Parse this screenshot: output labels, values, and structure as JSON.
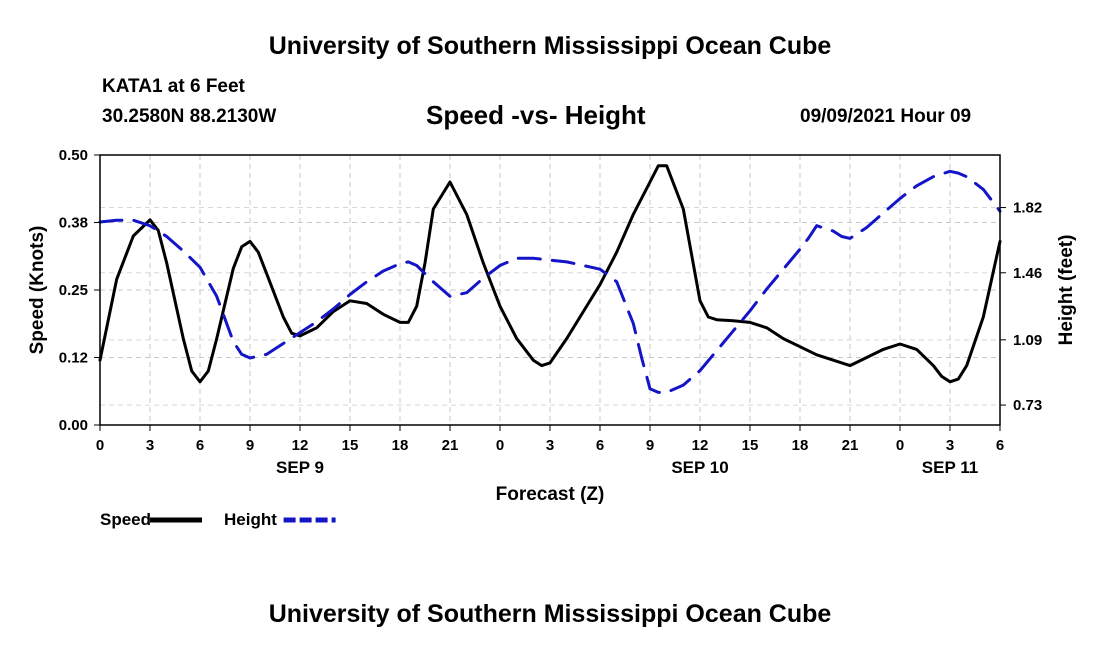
{
  "header": {
    "title": "University of Southern Mississippi Ocean Cube",
    "station": "KATA1 at 6 Feet",
    "coordinates": "30.2580N  88.2130W",
    "subtitle": "Speed -vs- Height",
    "datetime": "09/09/2021 Hour 09"
  },
  "footer": {
    "title": "University of Southern Mississippi Ocean Cube"
  },
  "chart_data": {
    "type": "line",
    "title": "Speed -vs- Height",
    "xlabel": "Forecast (Z)",
    "ylabel_left": "Speed (Knots)",
    "ylabel_right": "Height (feet)",
    "x_range": [
      0,
      54
    ],
    "y_left_range": [
      0.0,
      0.5
    ],
    "y_right_range": [
      0.62,
      2.11
    ],
    "x_ticks": [
      {
        "x": 0,
        "label": "0"
      },
      {
        "x": 3,
        "label": "3"
      },
      {
        "x": 6,
        "label": "6"
      },
      {
        "x": 9,
        "label": "9"
      },
      {
        "x": 12,
        "label": "12"
      },
      {
        "x": 15,
        "label": "15"
      },
      {
        "x": 18,
        "label": "18"
      },
      {
        "x": 21,
        "label": "21"
      },
      {
        "x": 24,
        "label": "0"
      },
      {
        "x": 27,
        "label": "3"
      },
      {
        "x": 30,
        "label": "6"
      },
      {
        "x": 33,
        "label": "9"
      },
      {
        "x": 36,
        "label": "12"
      },
      {
        "x": 39,
        "label": "15"
      },
      {
        "x": 42,
        "label": "18"
      },
      {
        "x": 45,
        "label": "21"
      },
      {
        "x": 48,
        "label": "0"
      },
      {
        "x": 51,
        "label": "3"
      },
      {
        "x": 54,
        "label": "6"
      }
    ],
    "day_labels": [
      {
        "x": 12,
        "label": "SEP 9"
      },
      {
        "x": 36,
        "label": "SEP 10"
      },
      {
        "x": 51,
        "label": "SEP 11"
      }
    ],
    "y_left_ticks": [
      {
        "v": 0.0,
        "label": "0.00"
      },
      {
        "v": 0.125,
        "label": "0.12"
      },
      {
        "v": 0.25,
        "label": "0.25"
      },
      {
        "v": 0.375,
        "label": "0.38"
      },
      {
        "v": 0.5,
        "label": "0.50"
      }
    ],
    "y_right_ticks": [
      {
        "v": 0.73,
        "label": "0.73"
      },
      {
        "v": 1.09,
        "label": "1.09"
      },
      {
        "v": 1.46,
        "label": "1.46"
      },
      {
        "v": 1.82,
        "label": "1.82"
      }
    ],
    "series": [
      {
        "name": "Speed",
        "axis": "left",
        "color": "#000000",
        "dash": "solid",
        "x": [
          0,
          1,
          2,
          3,
          3.5,
          4,
          5,
          5.5,
          6,
          6.5,
          7,
          8,
          8.5,
          9,
          9.5,
          10,
          11,
          11.5,
          12,
          13,
          14,
          15,
          16,
          17,
          18,
          18.5,
          19,
          19.5,
          20,
          21,
          22,
          23,
          24,
          25,
          26,
          26.5,
          27,
          28,
          29,
          30,
          31,
          32,
          33,
          33.5,
          34,
          35,
          36,
          36.5,
          37,
          38,
          39,
          40,
          41,
          42,
          43,
          44,
          45,
          46,
          47,
          48,
          49,
          50,
          50.5,
          51,
          51.5,
          52,
          53,
          54
        ],
        "y": [
          0.12,
          0.27,
          0.35,
          0.38,
          0.36,
          0.3,
          0.16,
          0.1,
          0.08,
          0.1,
          0.16,
          0.29,
          0.33,
          0.34,
          0.32,
          0.28,
          0.2,
          0.17,
          0.165,
          0.18,
          0.21,
          0.23,
          0.225,
          0.205,
          0.19,
          0.19,
          0.22,
          0.3,
          0.4,
          0.45,
          0.39,
          0.3,
          0.22,
          0.16,
          0.12,
          0.11,
          0.115,
          0.16,
          0.21,
          0.26,
          0.32,
          0.39,
          0.45,
          0.48,
          0.48,
          0.4,
          0.23,
          0.2,
          0.195,
          0.193,
          0.19,
          0.18,
          0.16,
          0.145,
          0.13,
          0.12,
          0.11,
          0.125,
          0.14,
          0.15,
          0.14,
          0.11,
          0.09,
          0.08,
          0.085,
          0.11,
          0.2,
          0.34
        ]
      },
      {
        "name": "Height",
        "axis": "right",
        "color": "#1515c8",
        "dash": "dashed",
        "x": [
          0,
          1,
          2,
          3,
          4,
          5,
          6,
          7,
          8,
          8.5,
          9,
          10,
          11,
          12,
          13,
          14,
          15,
          16,
          17,
          18,
          18.5,
          19,
          20,
          21,
          22,
          23,
          24,
          25,
          26,
          27,
          28,
          29,
          30,
          31,
          32,
          32.5,
          33,
          33.5,
          34,
          35,
          36,
          37,
          38,
          39,
          40,
          41,
          42,
          42.5,
          43,
          44,
          44.5,
          45,
          46,
          47,
          48,
          49,
          50,
          51,
          51.5,
          52,
          53,
          54
        ],
        "y": [
          1.74,
          1.75,
          1.75,
          1.72,
          1.66,
          1.58,
          1.49,
          1.33,
          1.08,
          1.01,
          0.99,
          1.01,
          1.07,
          1.13,
          1.19,
          1.26,
          1.34,
          1.41,
          1.47,
          1.51,
          1.52,
          1.5,
          1.41,
          1.33,
          1.35,
          1.43,
          1.5,
          1.54,
          1.54,
          1.53,
          1.52,
          1.5,
          1.48,
          1.41,
          1.18,
          0.99,
          0.82,
          0.8,
          0.8,
          0.84,
          0.92,
          1.03,
          1.14,
          1.25,
          1.37,
          1.48,
          1.59,
          1.65,
          1.72,
          1.69,
          1.66,
          1.65,
          1.71,
          1.79,
          1.87,
          1.94,
          1.99,
          2.02,
          2.01,
          1.99,
          1.92,
          1.8
        ]
      }
    ],
    "legend": {
      "placement": "bottom-left",
      "entries": [
        "Speed",
        "Height"
      ]
    }
  }
}
